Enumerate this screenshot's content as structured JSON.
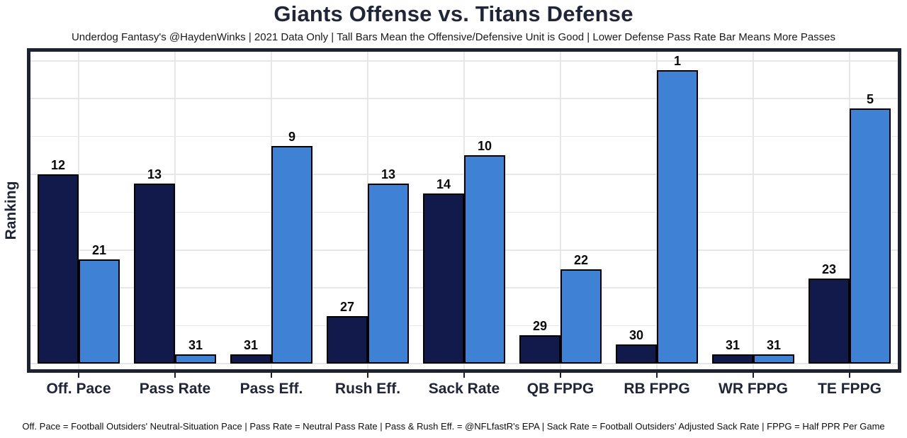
{
  "title": "Giants Offense vs. Titans Defense",
  "subtitle": "Underdog Fantasy's @HaydenWinks | 2021 Data Only | Tall Bars Mean the Offensive/Defensive Unit is Good | Lower Defense Pass Rate Bar Means More Passes",
  "footnote": "Off. Pace = Football Outsiders' Neutral-Situation Pace | Pass Rate = Neutral Pass Rate | Pass & Rush Eff. = @NFLfastR's EPA | Sack Rate = Football Outsiders' Adjusted Sack Rate | FPPG = Half PPR Per Game",
  "ylabel": "Ranking",
  "colors": {
    "offense_bar": "#111a4a",
    "defense_bar": "#3f81d4",
    "bar_outline": "#000000",
    "gridline": "#e7e7e7",
    "panel_border": "#1d2230",
    "title_text": "#202637",
    "background": "#ffffff"
  },
  "chart_data": {
    "type": "bar",
    "grouping": "dodged",
    "categories": [
      "Off. Pace",
      "Pass Rate",
      "Pass Eff.",
      "Rush Eff.",
      "Sack Rate",
      "QB FPPG",
      "RB FPPG",
      "WR FPPG",
      "TE FPPG"
    ],
    "series": [
      {
        "name": "Giants Offense",
        "role": "offense",
        "values": [
          12,
          13,
          31,
          27,
          14,
          29,
          30,
          31,
          23
        ]
      },
      {
        "name": "Titans Defense",
        "role": "defense",
        "values": [
          21,
          31,
          9,
          13,
          10,
          22,
          1,
          31,
          5
        ]
      }
    ],
    "value_semantics": "NFL ranking out of 32 (1 = best); bar height drawn as 32 minus rank, labels show the rank",
    "title": "Giants Offense vs. Titans Defense",
    "xlabel": "",
    "ylabel": "Ranking",
    "ylim": [
      0,
      32
    ],
    "gridline_step": 4,
    "grid": "on",
    "legend": "none",
    "bar_labels": "rank shown above each bar"
  }
}
